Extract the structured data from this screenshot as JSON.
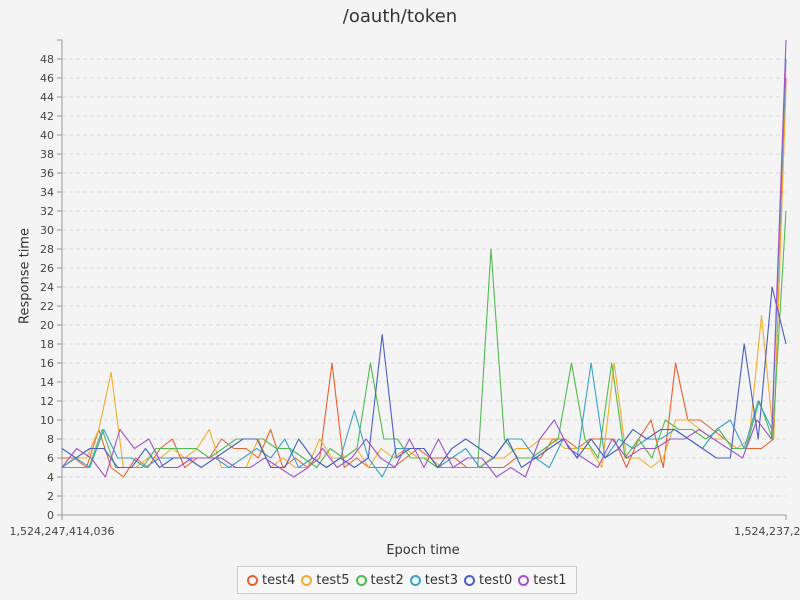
{
  "chart_data": {
    "type": "line",
    "title": "/oauth/token",
    "xlabel": "Epoch time",
    "ylabel": "Response time",
    "ylim": [
      0,
      50
    ],
    "y_ticks": [
      0,
      2,
      4,
      6,
      8,
      10,
      12,
      14,
      16,
      18,
      20,
      22,
      24,
      26,
      28,
      30,
      32,
      34,
      36,
      38,
      40,
      42,
      44,
      46,
      48
    ],
    "x_tick_labels": [
      "1,524,247,414,036",
      "1,524,237,2"
    ],
    "grid": true,
    "legend_position": "bottom",
    "series": [
      {
        "name": "test4",
        "color": "#e8602c",
        "values": [
          6,
          6,
          5,
          9,
          5,
          4,
          6,
          5,
          7,
          8,
          5,
          6,
          6,
          8,
          7,
          7,
          6,
          9,
          5,
          6,
          5,
          6,
          16,
          5,
          6,
          5,
          5,
          5,
          6,
          7,
          6,
          6,
          6,
          5,
          5,
          5,
          5,
          6,
          6,
          6,
          8,
          8,
          7,
          8,
          8,
          8,
          5,
          8,
          10,
          5,
          16,
          10,
          10,
          9,
          8,
          7,
          7,
          7,
          8,
          46
        ]
      },
      {
        "name": "test5",
        "color": "#f2ac2c",
        "values": [
          5,
          6,
          6,
          9,
          15,
          5,
          5,
          6,
          6,
          7,
          6,
          7,
          9,
          5,
          5,
          5,
          8,
          5,
          6,
          5,
          5,
          8,
          6,
          6,
          7,
          5,
          7,
          6,
          7,
          6,
          6,
          5,
          5,
          5,
          5,
          6,
          6,
          7,
          7,
          8,
          8,
          7,
          7,
          7,
          5,
          16,
          6,
          6,
          5,
          6,
          10,
          10,
          9,
          8,
          8,
          7,
          8,
          21,
          8,
          45
        ]
      },
      {
        "name": "test2",
        "color": "#52ba4f",
        "values": [
          5,
          5,
          5,
          9,
          5,
          5,
          5,
          7,
          7,
          7,
          7,
          6,
          7,
          8,
          8,
          8,
          7,
          7,
          6,
          5,
          7,
          6,
          7,
          16,
          8,
          8,
          6,
          6,
          5,
          5,
          5,
          5,
          28,
          8,
          6,
          6,
          7,
          8,
          16,
          8,
          6,
          16,
          6,
          8,
          6,
          10,
          9,
          9,
          8,
          9,
          7,
          7,
          12,
          8,
          32
        ]
      },
      {
        "name": "test3",
        "color": "#3ba1c8",
        "values": [
          5,
          6,
          5,
          9,
          6,
          6,
          5,
          6,
          6,
          6,
          6,
          6,
          5,
          6,
          7,
          6,
          8,
          5,
          6,
          5,
          6,
          11,
          6,
          4,
          7,
          7,
          7,
          5,
          6,
          7,
          5,
          6,
          8,
          8,
          6,
          5,
          8,
          6,
          16,
          6,
          8,
          7,
          8,
          8,
          9,
          8,
          7,
          9,
          10,
          7,
          12,
          9,
          48
        ]
      },
      {
        "name": "test0",
        "color": "#4a5fc1",
        "values": [
          7,
          6,
          7,
          7,
          5,
          5,
          7,
          5,
          6,
          6,
          5,
          6,
          7,
          8,
          8,
          5,
          5,
          8,
          6,
          5,
          6,
          5,
          6,
          19,
          6,
          7,
          7,
          5,
          7,
          8,
          7,
          6,
          8,
          5,
          6,
          7,
          8,
          6,
          8,
          6,
          7,
          9,
          8,
          9,
          9,
          8,
          7,
          6,
          6,
          18,
          8,
          24,
          18
        ]
      },
      {
        "name": "test1",
        "color": "#9f55c8",
        "values": [
          5,
          7,
          6,
          4,
          9,
          7,
          8,
          5,
          5,
          6,
          6,
          6,
          5,
          5,
          6,
          5,
          4,
          5,
          7,
          5,
          6,
          8,
          6,
          5,
          8,
          5,
          8,
          5,
          6,
          6,
          4,
          5,
          4,
          8,
          10,
          7,
          6,
          5,
          8,
          6,
          7,
          7,
          8,
          8,
          9,
          8,
          7,
          6,
          10,
          8,
          50
        ]
      }
    ]
  }
}
